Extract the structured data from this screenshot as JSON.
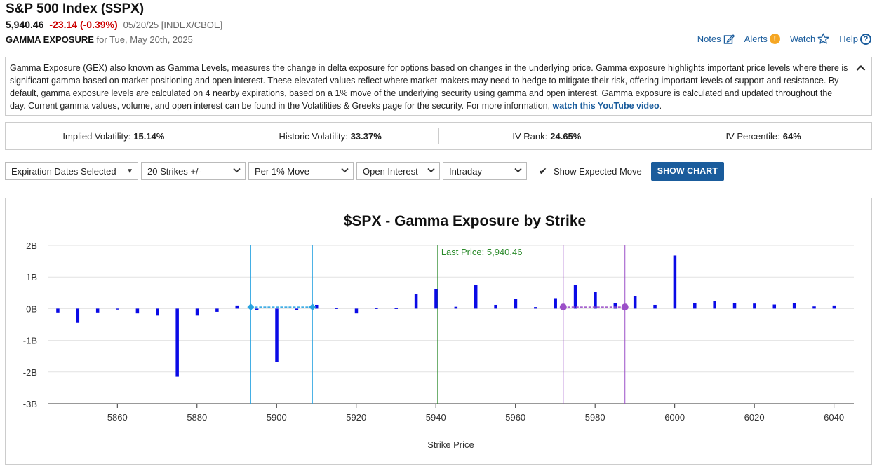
{
  "header": {
    "title": "S&P 500 Index ($SPX)",
    "last": "5,940.46",
    "change": "-23.14 (-0.39%)",
    "meta": "05/20/25 [INDEX/CBOE]",
    "section": "GAMMA EXPOSURE",
    "for_date": "for Tue, May 20th, 2025"
  },
  "actions": {
    "notes": "Notes",
    "alerts": "Alerts",
    "watch": "Watch",
    "help": "Help"
  },
  "description": {
    "text": "Gamma Exposure (GEX) also known as Gamma Levels, measures the change in delta exposure for options based on changes in the underlying price. Gamma exposure highlights important price levels where there is significant gamma based on market positioning and open interest. These elevated values reflect where market-makers may need to hedge to mitigate their risk, offering important levels of support and resistance. By default, gamma exposure levels are calculated on 4 nearby expirations, based on a 1% move of the underlying security using gamma and open interest. Gamma exposure is calculated and updated throughout the day. Current gamma values, volume, and open interest can be found in the Volatilities & Greeks page for the security. For more information, ",
    "link": "watch this YouTube video",
    "tail": "."
  },
  "stats": [
    {
      "label": "Implied Volatility:",
      "value": "15.14%"
    },
    {
      "label": "Historic Volatility:",
      "value": "33.37%"
    },
    {
      "label": "IV Rank:",
      "value": "24.65%"
    },
    {
      "label": "IV Percentile:",
      "value": "64%"
    }
  ],
  "controls": {
    "expiration": "Expiration Dates Selected",
    "strikes": "20 Strikes +/-",
    "move": "Per 1% Move",
    "measure": "Open Interest",
    "period": "Intraday",
    "show_expected": "Show Expected Move",
    "show_expected_checked": true,
    "button": "SHOW CHART"
  },
  "colors": {
    "bar": "#0a0ae6",
    "last_price": "#2a8a2a",
    "expected_blue": "#29a3e0",
    "expected_purple": "#9b4fc8",
    "accent": "#1a5c9c"
  },
  "chart_data": {
    "type": "bar",
    "title": "$SPX - Gamma Exposure by Strike",
    "xlabel": "Strike Price",
    "ylabel": "",
    "xlim": [
      5842.5,
      6045
    ],
    "ylim": [
      -3,
      2
    ],
    "ytick_labels": [
      "-3B",
      "-2B",
      "-1B",
      "0B",
      "1B",
      "2B"
    ],
    "yticks": [
      -3,
      -2,
      -1,
      0,
      1,
      2
    ],
    "xticks": [
      5860,
      5880,
      5900,
      5920,
      5940,
      5960,
      5980,
      6000,
      6020,
      6040
    ],
    "unit": "B",
    "grid": true,
    "x": [
      5845,
      5850,
      5855,
      5860,
      5865,
      5870,
      5875,
      5880,
      5885,
      5890,
      5895,
      5900,
      5905,
      5910,
      5915,
      5920,
      5925,
      5930,
      5935,
      5940,
      5945,
      5950,
      5955,
      5960,
      5965,
      5970,
      5975,
      5980,
      5985,
      5990,
      5995,
      6000,
      6005,
      6010,
      6015,
      6020,
      6025,
      6030,
      6035,
      6040
    ],
    "values": [
      -0.12,
      -0.45,
      -0.12,
      -0.03,
      -0.15,
      -0.22,
      -2.15,
      -0.22,
      -0.1,
      0.1,
      -0.05,
      -1.68,
      -0.05,
      0.12,
      0.02,
      -0.15,
      0,
      0,
      0.47,
      0.62,
      0.06,
      0.74,
      0.12,
      0.31,
      0.05,
      0.33,
      0.76,
      0.53,
      0.17,
      0.4,
      0.12,
      1.68,
      0.18,
      0.24,
      0.18,
      0.16,
      0.13,
      0.18,
      0.07,
      0.1
    ],
    "last_price": {
      "label": "Last Price: 5,940.46",
      "value": 5940.46
    },
    "expected_move_lines": [
      5893.5,
      5909.0,
      5972.0,
      5987.5
    ],
    "expected_move_segments": [
      {
        "x1": 5893.5,
        "x2": 5909.0,
        "y": 0.05,
        "color": "blue"
      },
      {
        "x1": 5972.0,
        "x2": 5987.5,
        "y": 0.05,
        "color": "purple"
      }
    ]
  }
}
